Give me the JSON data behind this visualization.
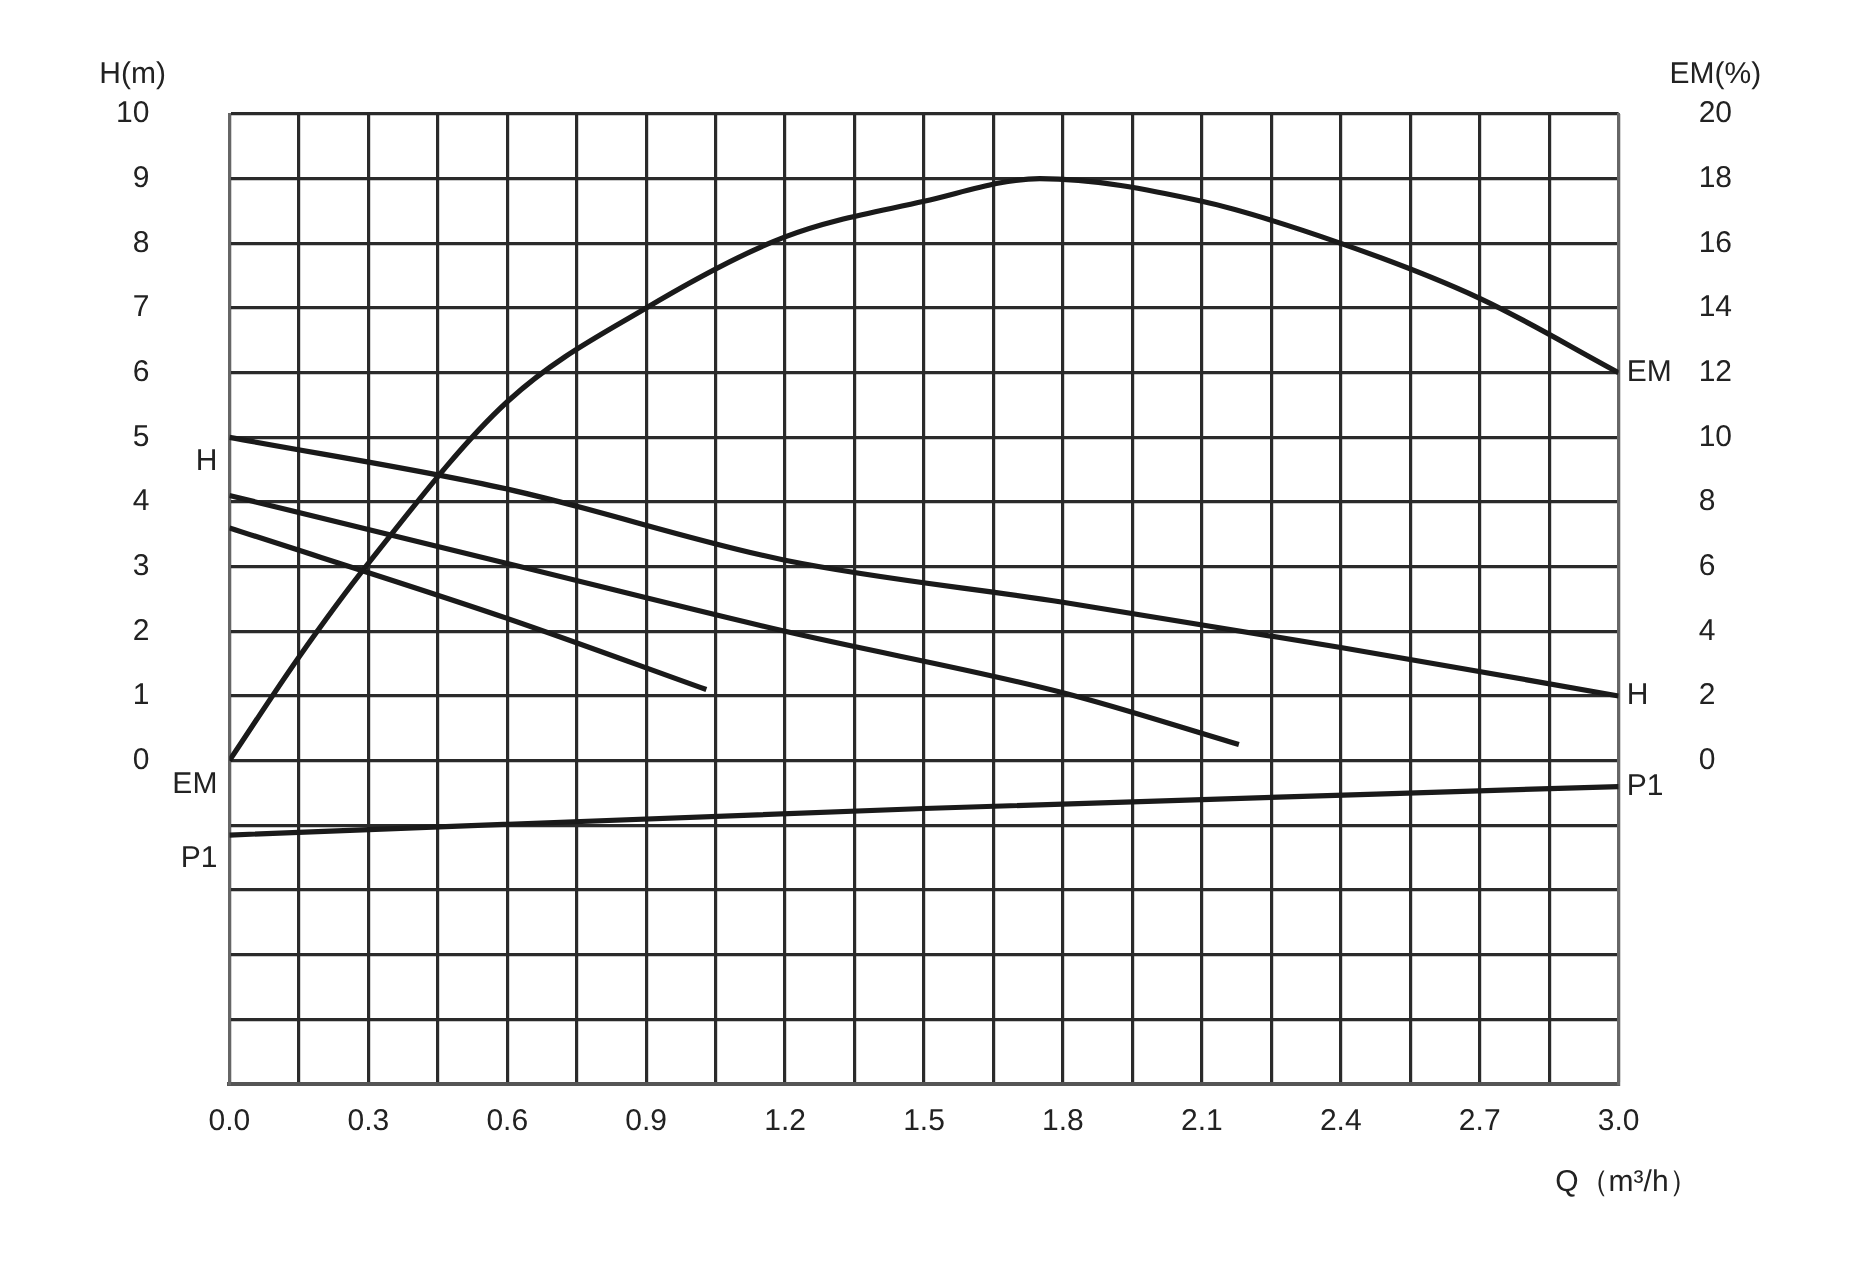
{
  "chart_data": {
    "type": "line",
    "xlabel": "Q（m³/h）",
    "ylabel": "H(m)",
    "y2label": "EM(%)",
    "xlim": [
      0,
      3.0
    ],
    "xticks": [
      {
        "value": 0,
        "label": "0.0"
      },
      {
        "value": 0.15,
        "label": null
      },
      {
        "value": 0.3,
        "label": "0.3"
      },
      {
        "value": 0.45,
        "label": null
      },
      {
        "value": 0.6,
        "label": "0.6"
      },
      {
        "value": 0.75,
        "label": null
      },
      {
        "value": 0.9,
        "label": "0.9"
      },
      {
        "value": 1.05,
        "label": null
      },
      {
        "value": 1.2,
        "label": "1.2"
      },
      {
        "value": 1.35,
        "label": null
      },
      {
        "value": 1.5,
        "label": "1.5"
      },
      {
        "value": 1.65,
        "label": null
      },
      {
        "value": 1.8,
        "label": "1.8"
      },
      {
        "value": 1.95,
        "label": null
      },
      {
        "value": 2.1,
        "label": "2.1"
      },
      {
        "value": 2.25,
        "label": null
      },
      {
        "value": 2.4,
        "label": "2.4"
      },
      {
        "value": 2.55,
        "label": null
      },
      {
        "value": 2.7,
        "label": "2.7"
      },
      {
        "value": 2.85,
        "label": null
      },
      {
        "value": 3.0,
        "label": "3.0"
      }
    ],
    "ylim": [
      -5,
      10
    ],
    "yticks": [
      {
        "value": -5,
        "label": null
      },
      {
        "value": -4,
        "label": null
      },
      {
        "value": -3,
        "label": null
      },
      {
        "value": -2,
        "label": null
      },
      {
        "value": -1,
        "label": null
      },
      0,
      1,
      2,
      3,
      4,
      5,
      6,
      7,
      8,
      9,
      10
    ],
    "y2lim": [
      -10,
      20
    ],
    "y2ticks": [
      0,
      2,
      4,
      6,
      8,
      10,
      12,
      14,
      16,
      18,
      20
    ],
    "grid": true,
    "legend": false,
    "marker": "none",
    "line_style": "solid",
    "series": [
      {
        "name": "H",
        "color": "#1a1a1a",
        "x": [
          0,
          0.6,
          1.2,
          1.8,
          2.4,
          3.0
        ],
        "values": [
          5.0,
          4.2,
          3.1,
          2.45,
          1.75,
          1.0
        ]
      },
      {
        "color": "#1a1a1a",
        "x": [
          0,
          0.6,
          1.2,
          1.8,
          2.18
        ],
        "values": [
          4.1,
          3.05,
          2.0,
          1.05,
          0.25
        ]
      },
      {
        "color": "#1a1a1a",
        "x": [
          0,
          0.6,
          1.03
        ],
        "values": [
          3.6,
          2.2,
          1.1
        ]
      },
      {
        "name": "EM",
        "color": "#1a1a1a",
        "axis": "y2",
        "x": [
          0,
          0.15,
          0.3,
          0.6,
          0.9,
          1.2,
          1.5,
          1.75,
          2.1,
          2.4,
          2.7,
          3.0
        ],
        "values": [
          0,
          3.2,
          6.1,
          11.1,
          14.0,
          16.2,
          17.3,
          18,
          17.3,
          16.0,
          14.3,
          12
        ]
      },
      {
        "name": "P1",
        "color": "#1a1a1a",
        "x": [
          0,
          1.5,
          3.0
        ],
        "values": [
          -1.15,
          -0.74,
          -0.4
        ]
      }
    ]
  }
}
